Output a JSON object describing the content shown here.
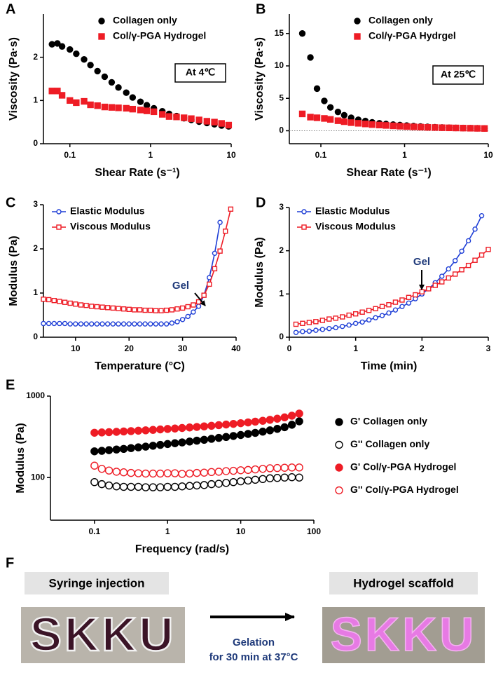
{
  "chart_data": [
    {
      "type": "scatter",
      "panel": "A",
      "xlabel": "Shear Rate (s⁻¹)",
      "ylabel": "Viscosity (Pa·s)",
      "annotation": "At 4℃",
      "xlog": true,
      "xlim": [
        0.047,
        10
      ],
      "xticks": [
        0.1,
        1,
        10
      ],
      "ylim": [
        0,
        3
      ],
      "yticks": [
        0,
        1,
        2
      ],
      "x": [
        0.06,
        0.07,
        0.08,
        0.1,
        0.12,
        0.15,
        0.18,
        0.22,
        0.27,
        0.33,
        0.4,
        0.5,
        0.6,
        0.75,
        0.9,
        1.1,
        1.4,
        1.7,
        2.1,
        2.6,
        3.2,
        4,
        5,
        6.2,
        7.6,
        9.3
      ],
      "series": [
        {
          "name": "Collagen only",
          "color": "#000000",
          "marker": "circle",
          "filled": true,
          "values": [
            2.3,
            2.32,
            2.25,
            2.18,
            2.08,
            1.95,
            1.82,
            1.68,
            1.55,
            1.42,
            1.3,
            1.18,
            1.07,
            0.97,
            0.89,
            0.82,
            0.75,
            0.69,
            0.64,
            0.59,
            0.55,
            0.51,
            0.48,
            0.45,
            0.42,
            0.4
          ]
        },
        {
          "name": "Col/γ-PGA Hydrogel",
          "color": "#ee1c25",
          "marker": "square",
          "filled": true,
          "values": [
            1.22,
            1.22,
            1.12,
            1.0,
            0.95,
            0.98,
            0.9,
            0.88,
            0.85,
            0.84,
            0.83,
            0.82,
            0.8,
            0.78,
            0.76,
            0.74,
            0.68,
            0.63,
            0.62,
            0.6,
            0.58,
            0.55,
            0.52,
            0.5,
            0.47,
            0.43
          ]
        }
      ]
    },
    {
      "type": "scatter",
      "panel": "B",
      "xlabel": "Shear Rate (s⁻¹)",
      "ylabel": "Viscosity (Pa·s)",
      "annotation": "At 25℃",
      "zero_line": true,
      "xlog": true,
      "xlim": [
        0.042,
        10
      ],
      "xticks": [
        0.1,
        1,
        10
      ],
      "ylim": [
        -2,
        18
      ],
      "yticks": [
        0,
        5,
        10,
        15
      ],
      "x": [
        0.06,
        0.075,
        0.09,
        0.11,
        0.13,
        0.16,
        0.19,
        0.23,
        0.28,
        0.34,
        0.41,
        0.5,
        0.6,
        0.73,
        0.88,
        1.06,
        1.28,
        1.55,
        1.88,
        2.3,
        2.8,
        3.4,
        4.1,
        5,
        6.1,
        7.4,
        9
      ],
      "series": [
        {
          "name": "Collagen only",
          "color": "#000000",
          "marker": "circle",
          "filled": true,
          "values": [
            15,
            11.3,
            6.5,
            4.6,
            3.6,
            2.9,
            2.4,
            2.0,
            1.7,
            1.5,
            1.3,
            1.15,
            1.05,
            0.95,
            0.88,
            0.8,
            0.72,
            0.66,
            0.6,
            0.55,
            0.5,
            0.47,
            0.44,
            0.42,
            0.4,
            0.38,
            0.36
          ]
        },
        {
          "name": "Col/γ-PGA Hydrgel",
          "color": "#ee1c25",
          "marker": "square",
          "filled": true,
          "values": [
            2.6,
            2.1,
            2.0,
            1.9,
            1.75,
            1.55,
            1.4,
            1.25,
            1.15,
            1.05,
            0.95,
            0.88,
            0.82,
            0.76,
            0.7,
            0.65,
            0.6,
            0.56,
            0.52,
            0.5,
            0.47,
            0.45,
            0.43,
            0.41,
            0.39,
            0.37,
            0.35
          ]
        }
      ]
    },
    {
      "type": "line",
      "panel": "C",
      "xlabel": "Temperature (°C)",
      "ylabel": "Modulus (Pa)",
      "annotation": "Gel",
      "xlim": [
        4,
        40
      ],
      "xticks": [
        10,
        20,
        30,
        40
      ],
      "ylim": [
        0,
        3
      ],
      "yticks": [
        0,
        1,
        2,
        3
      ],
      "x": [
        4,
        5,
        6,
        7,
        8,
        9,
        10,
        11,
        12,
        13,
        14,
        15,
        16,
        17,
        18,
        19,
        20,
        21,
        22,
        23,
        24,
        25,
        26,
        27,
        28,
        29,
        30,
        31,
        32,
        33,
        34,
        35,
        36,
        37,
        38,
        39
      ],
      "series": [
        {
          "name": "Elastic Modulus",
          "color": "#1f3fd6",
          "marker": "circle",
          "filled": false,
          "values": [
            0.31,
            0.31,
            0.31,
            0.31,
            0.31,
            0.3,
            0.3,
            0.3,
            0.3,
            0.3,
            0.3,
            0.3,
            0.3,
            0.3,
            0.3,
            0.3,
            0.3,
            0.3,
            0.3,
            0.3,
            0.3,
            0.3,
            0.3,
            0.3,
            0.32,
            0.35,
            0.4,
            0.47,
            0.57,
            0.7,
            0.95,
            1.35,
            1.9,
            2.6,
            null,
            null
          ]
        },
        {
          "name": "Viscous Modulus",
          "color": "#ee1c25",
          "marker": "square",
          "filled": false,
          "values": [
            0.86,
            0.85,
            0.83,
            0.81,
            0.79,
            0.77,
            0.75,
            0.73,
            0.72,
            0.7,
            0.69,
            0.68,
            0.67,
            0.66,
            0.65,
            0.64,
            0.63,
            0.62,
            0.62,
            0.61,
            0.61,
            0.6,
            0.6,
            0.61,
            0.62,
            0.64,
            0.66,
            0.69,
            0.73,
            0.8,
            0.95,
            1.2,
            1.55,
            1.95,
            2.4,
            2.9
          ]
        }
      ]
    },
    {
      "type": "line",
      "panel": "D",
      "xlabel": "Time (min)",
      "ylabel": "Modulus (Pa)",
      "annotation": "Gel",
      "xlim": [
        0,
        3
      ],
      "xticks": [
        0,
        1,
        2,
        3
      ],
      "ylim": [
        0,
        3
      ],
      "yticks": [
        0,
        1,
        2,
        3
      ],
      "x": [
        0.1,
        0.2,
        0.3,
        0.4,
        0.5,
        0.6,
        0.7,
        0.8,
        0.9,
        1.0,
        1.1,
        1.2,
        1.3,
        1.4,
        1.5,
        1.6,
        1.7,
        1.8,
        1.9,
        2.0,
        2.1,
        2.2,
        2.3,
        2.4,
        2.5,
        2.6,
        2.7,
        2.8,
        2.9,
        3.0
      ],
      "series": [
        {
          "name": "Elastic Modulus",
          "color": "#1f3fd6",
          "marker": "circle",
          "filled": false,
          "values": [
            0.11,
            0.13,
            0.14,
            0.16,
            0.18,
            0.2,
            0.22,
            0.25,
            0.28,
            0.32,
            0.35,
            0.4,
            0.45,
            0.5,
            0.56,
            0.63,
            0.71,
            0.79,
            0.89,
            1.0,
            1.12,
            1.26,
            1.41,
            1.58,
            1.77,
            1.99,
            2.23,
            2.5,
            2.81,
            null
          ]
        },
        {
          "name": "Viscous Modulus",
          "color": "#ee1c25",
          "marker": "square",
          "filled": false,
          "values": [
            0.3,
            0.32,
            0.34,
            0.36,
            0.39,
            0.42,
            0.44,
            0.47,
            0.51,
            0.54,
            0.58,
            0.62,
            0.66,
            0.71,
            0.75,
            0.81,
            0.86,
            0.92,
            0.98,
            1.05,
            1.12,
            1.2,
            1.28,
            1.37,
            1.46,
            1.56,
            1.66,
            1.78,
            1.9,
            2.03
          ]
        }
      ]
    },
    {
      "type": "scatter",
      "panel": "E",
      "xlabel": "Frequency (rad/s)",
      "ylabel": "Modulus (Pa)",
      "xlog": true,
      "ylog": true,
      "xlim": [
        0.025,
        100
      ],
      "xticks": [
        0.1,
        1,
        10,
        100
      ],
      "ylim": [
        30,
        1000
      ],
      "yticks": [
        100,
        1000
      ],
      "x": [
        0.1,
        0.126,
        0.158,
        0.2,
        0.251,
        0.316,
        0.398,
        0.501,
        0.631,
        0.794,
        1,
        1.26,
        1.58,
        2,
        2.51,
        3.16,
        3.98,
        5.01,
        6.31,
        7.94,
        10,
        12.6,
        15.8,
        20,
        25.1,
        31.6,
        39.8,
        50.1,
        63.1
      ],
      "series": [
        {
          "name": "G' Collagen only",
          "color": "#000000",
          "marker": "circle",
          "filled": true,
          "values": [
            210,
            213,
            217,
            221,
            225,
            230,
            235,
            240,
            246,
            252,
            258,
            264,
            270,
            277,
            284,
            291,
            299,
            307,
            315,
            324,
            333,
            343,
            354,
            366,
            380,
            396,
            415,
            445,
            490
          ]
        },
        {
          "name": "G'' Collagen only",
          "color": "#000000",
          "marker": "circle",
          "filled": false,
          "values": [
            88,
            83,
            80,
            78,
            77,
            77,
            77,
            76,
            76,
            76,
            77,
            77,
            78,
            79,
            80,
            81,
            83,
            84,
            86,
            88,
            90,
            92,
            94,
            96,
            98,
            99,
            100,
            101,
            100
          ]
        },
        {
          "name": "G' Col/γ-PGA Hydrogel",
          "color": "#ee1c25",
          "marker": "circle",
          "filled": true,
          "values": [
            355,
            358,
            361,
            364,
            368,
            372,
            376,
            380,
            385,
            390,
            395,
            400,
            406,
            412,
            418,
            425,
            432,
            440,
            448,
            456,
            465,
            475,
            486,
            498,
            512,
            528,
            548,
            575,
            610
          ]
        },
        {
          "name": "G'' Col/γ-PGA Hydrogel",
          "color": "#ee1c25",
          "marker": "circle",
          "filled": false,
          "values": [
            140,
            128,
            122,
            118,
            116,
            114,
            113,
            112,
            112,
            112,
            113,
            113,
            111,
            112,
            114,
            115,
            117,
            118,
            120,
            121,
            123,
            124,
            126,
            128,
            130,
            131,
            132,
            133,
            133
          ]
        }
      ]
    }
  ],
  "panel_f": {
    "label": "F",
    "left_caption": "Syringe injection",
    "right_caption": "Hydrogel scaffold",
    "photo_text": "SKKU",
    "arrow_text": [
      "Gelation",
      "for 30 min at 37°C"
    ]
  }
}
